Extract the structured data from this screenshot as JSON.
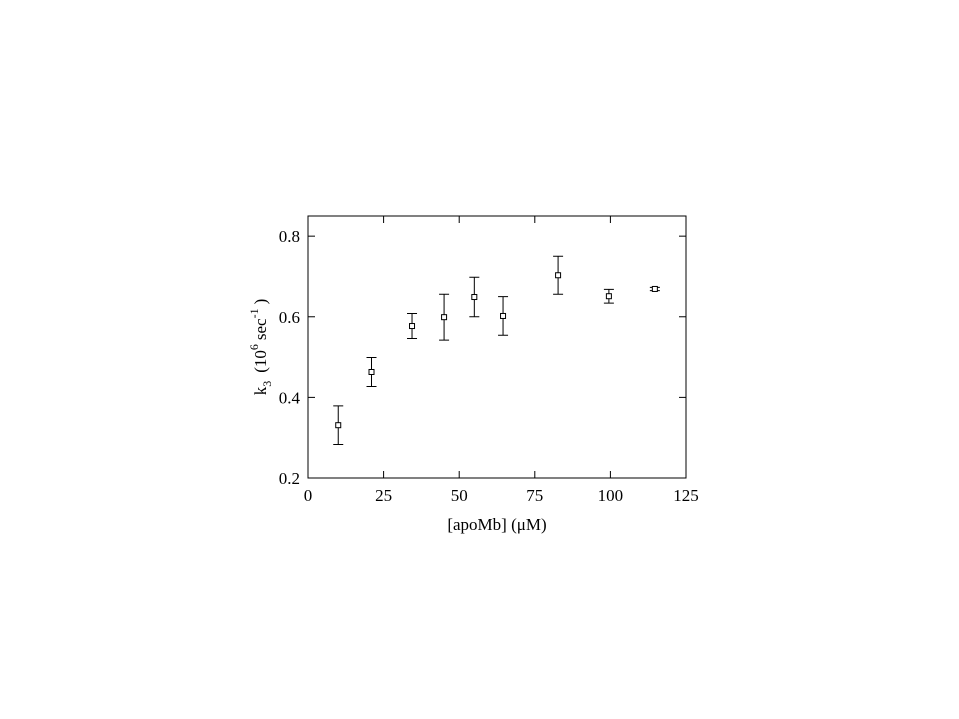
{
  "chart_data": {
    "type": "scatter",
    "x_label": "[apoMb]  (μM)",
    "y_label_parts": [
      "k",
      "3",
      "(10",
      "6",
      "sec",
      "-1",
      ")"
    ],
    "x": [
      10,
      21,
      34.4,
      45,
      55,
      64.5,
      82.7,
      99.5,
      114.7
    ],
    "series": [
      {
        "color": "#000000",
        "values": [
          0.331,
          0.463,
          0.577,
          0.599,
          0.649,
          0.602,
          0.703,
          0.651,
          0.669
        ],
        "errors": [
          0.048,
          0.036,
          0.031,
          0.057,
          0.049,
          0.048,
          0.047,
          0.017,
          0.004
        ]
      }
    ],
    "xlim": [
      0,
      125
    ],
    "ylim": [
      0.2,
      0.85
    ],
    "xticks": [
      0,
      25,
      50,
      75,
      100,
      125
    ],
    "yticks": [
      0.2,
      0.4,
      0.6,
      0.8
    ]
  }
}
